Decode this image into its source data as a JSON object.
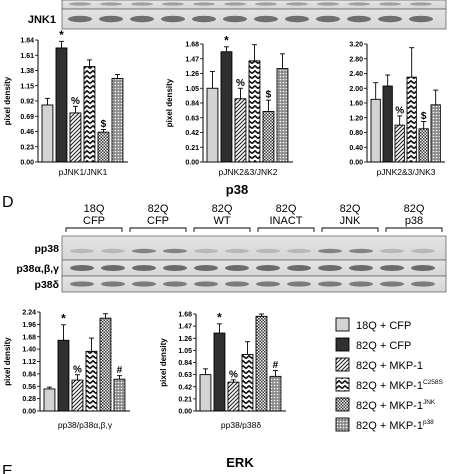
{
  "top_blot": {
    "partial_label": "",
    "row_label": "JNK1"
  },
  "panel_d": {
    "letter": "D",
    "title": "p38"
  },
  "next_panel": {
    "letter": "E",
    "title": "ERK"
  },
  "blot_d": {
    "lanes": [
      {
        "top": "18Q",
        "bottom": "CFP"
      },
      {
        "top": "82Q",
        "bottom": "CFP"
      },
      {
        "top": "82Q",
        "bottom": "WT"
      },
      {
        "top": "82Q",
        "bottom": "INACT"
      },
      {
        "top": "82Q",
        "bottom": "JNK"
      },
      {
        "top": "82Q",
        "bottom": "p38"
      }
    ],
    "rows": [
      "pp38",
      "p38α,β,γ",
      "p38δ"
    ]
  },
  "legend": {
    "items": [
      {
        "label": "18Q + CFP",
        "sup": "",
        "pattern": "light"
      },
      {
        "label": "82Q + CFP",
        "sup": "",
        "pattern": "dark"
      },
      {
        "label": "82Q + MKP-1",
        "sup": "",
        "pattern": "diag"
      },
      {
        "label": "82Q + MKP-1",
        "sup": "C258S",
        "pattern": "zigzag"
      },
      {
        "label": "82Q + MKP-1",
        "sup": "JNK",
        "pattern": "checker"
      },
      {
        "label": "82Q + MKP-1",
        "sup": "p38",
        "pattern": "dots"
      }
    ]
  },
  "chart_data": [
    {
      "type": "bar",
      "xlabel": "pJNK1/JNK1",
      "ylabel": "pixel density",
      "ylim": [
        0,
        1.84
      ],
      "yticks": [
        "0.00",
        "0.23",
        "0.46",
        "0.69",
        "0.92",
        "1.15",
        "1.38",
        "1.61",
        "1.84"
      ],
      "categories": [
        "18Q + CFP",
        "82Q + CFP",
        "82Q + MKP-1",
        "82Q + MKP-1 C258S",
        "82Q + MKP-1 JNK",
        "82Q + MKP-1 p38"
      ],
      "values": [
        0.86,
        1.72,
        0.74,
        1.44,
        0.45,
        1.26
      ],
      "errors": [
        0.1,
        0.1,
        0.1,
        0.1,
        0.04,
        0.06
      ],
      "annotations": [
        "",
        "*",
        "%",
        "",
        "$",
        ""
      ]
    },
    {
      "type": "bar",
      "xlabel": "pJNK2&3/JNK2",
      "ylabel": "pixel density",
      "ylim": [
        0,
        1.68
      ],
      "yticks": [
        "0.00",
        "0.21",
        "0.42",
        "0.63",
        "0.84",
        "1.05",
        "1.26",
        "1.47",
        "1.68"
      ],
      "categories": [
        "18Q + CFP",
        "82Q + CFP",
        "82Q + MKP-1",
        "82Q + MKP-1 C258S",
        "82Q + MKP-1 JNK",
        "82Q + MKP-1 p38"
      ],
      "values": [
        1.05,
        1.57,
        0.9,
        1.44,
        0.72,
        1.33
      ],
      "errors": [
        0.24,
        0.07,
        0.15,
        0.23,
        0.16,
        0.21
      ],
      "annotations": [
        "",
        "*",
        "%",
        "",
        "$",
        ""
      ]
    },
    {
      "type": "bar",
      "xlabel": "pJNK2&3/JNK3",
      "ylabel": "",
      "ylim": [
        0,
        3.2
      ],
      "yticks": [
        "0.00",
        "0.40",
        "0.80",
        "1.20",
        "1.60",
        "2.00",
        "2.40",
        "2.80",
        "3.20"
      ],
      "categories": [
        "18Q + CFP",
        "82Q + CFP",
        "82Q + MKP-1",
        "82Q + MKP-1 C258S",
        "82Q + MKP-1 JNK",
        "82Q + MKP-1 p38"
      ],
      "values": [
        1.7,
        2.06,
        1.0,
        2.3,
        0.9,
        1.55
      ],
      "errors": [
        0.45,
        0.3,
        0.25,
        0.8,
        0.2,
        0.4
      ],
      "annotations": [
        "",
        "",
        "%",
        "",
        "$",
        ""
      ]
    },
    {
      "type": "bar",
      "xlabel": "pp38/p38α,β,γ",
      "ylabel": "pixel density",
      "ylim": [
        0,
        2.24
      ],
      "yticks": [
        "0.00",
        "0.28",
        "0.56",
        "0.84",
        "1.12",
        "1.40",
        "1.68",
        "1.96",
        "2.24"
      ],
      "categories": [
        "18Q + CFP",
        "82Q + CFP",
        "82Q + MKP-1",
        "82Q + MKP-1 C258S",
        "82Q + MKP-1 JNK",
        "82Q + MKP-1 p38"
      ],
      "values": [
        0.5,
        1.6,
        0.7,
        1.35,
        2.1,
        0.72
      ],
      "errors": [
        0.04,
        0.35,
        0.12,
        0.3,
        0.1,
        0.08
      ],
      "annotations": [
        "",
        "*",
        "%",
        "",
        "",
        "#"
      ]
    },
    {
      "type": "bar",
      "xlabel": "pp38/p38δ",
      "ylabel": "pixel density",
      "ylim": [
        0,
        1.68
      ],
      "yticks": [
        "0.00",
        "0.21",
        "0.42",
        "0.63",
        "0.84",
        "1.05",
        "1.26",
        "1.47",
        "1.68"
      ],
      "categories": [
        "18Q + CFP",
        "82Q + CFP",
        "82Q + MKP-1",
        "82Q + MKP-1 C258S",
        "82Q + MKP-1 JNK",
        "82Q + MKP-1 p38"
      ],
      "values": [
        0.63,
        1.35,
        0.5,
        0.98,
        1.64,
        0.6
      ],
      "errors": [
        0.1,
        0.16,
        0.04,
        0.22,
        0.04,
        0.1
      ],
      "annotations": [
        "",
        "*",
        "%",
        "",
        "",
        "#"
      ]
    }
  ]
}
